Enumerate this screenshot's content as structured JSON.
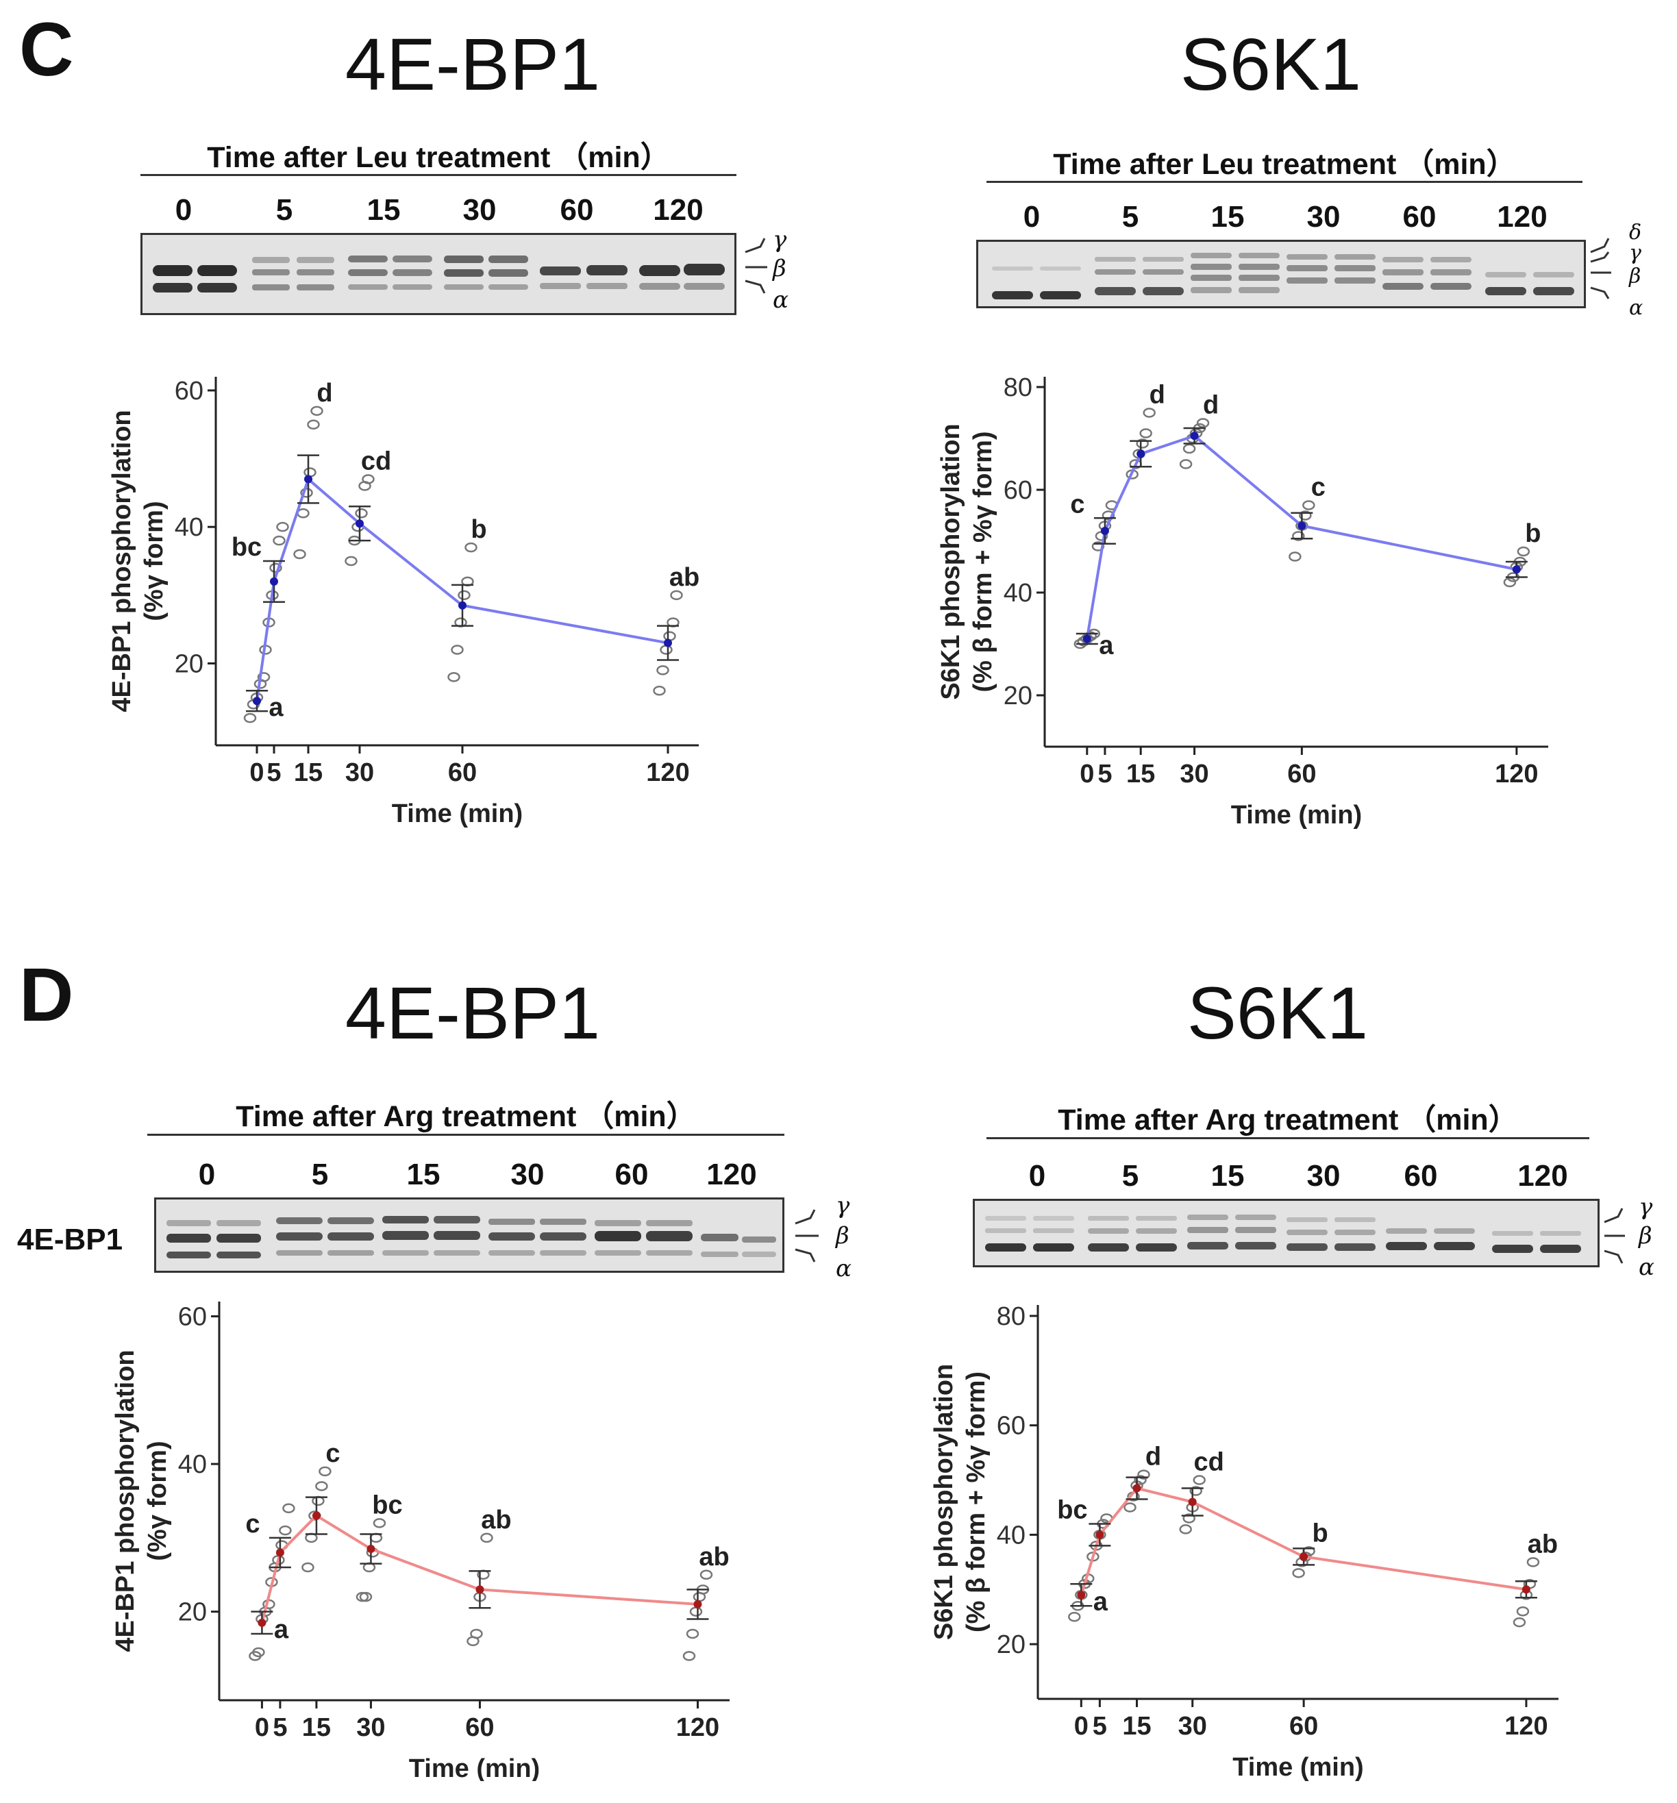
{
  "panels": [
    {
      "letter": "C",
      "blots": [
        {
          "protein": "4E-BP1",
          "time_header": "Time after Leu treatment （min）",
          "lanes": [
            "0",
            "5",
            "15",
            "30",
            "60",
            "120"
          ],
          "forms": [
            "γ",
            "β",
            "α"
          ],
          "row_label": ""
        },
        {
          "protein": "S6K1",
          "time_header": "Time after Leu treatment （min）",
          "lanes": [
            "0",
            "5",
            "15",
            "30",
            "60",
            "120"
          ],
          "forms": [
            "δ",
            "γ",
            "β",
            "α"
          ],
          "row_label": ""
        }
      ]
    },
    {
      "letter": "D",
      "blots": [
        {
          "protein": "4E-BP1",
          "time_header": "Time after Arg treatment （min）",
          "lanes": [
            "0",
            "5",
            "15",
            "30",
            "60",
            "120"
          ],
          "forms": [
            "γ",
            "β",
            "α"
          ],
          "row_label": "4E-BP1"
        },
        {
          "protein": "S6K1",
          "time_header": "Time after Arg treatment （min）",
          "lanes": [
            "0",
            "5",
            "15",
            "30",
            "60",
            "120"
          ],
          "forms": [
            "γ",
            "β",
            "α"
          ],
          "row_label": ""
        }
      ]
    }
  ],
  "chart_data": [
    {
      "id": "C-4EBP1",
      "type": "line",
      "line_color": "#7b7bf0",
      "mean_color": "#1a1aa8",
      "xlabel": "Time (min)",
      "ylabel": "4E-BP1 phosphorylation",
      "ylabel2": "(%γ form)",
      "x": [
        0,
        5,
        15,
        30,
        60,
        120
      ],
      "xticks": [
        "0",
        "5",
        "15",
        "30",
        "60",
        "120"
      ],
      "ylim": [
        8,
        62
      ],
      "yticks": [
        20,
        40,
        60
      ],
      "means": [
        14.5,
        32,
        47,
        40.5,
        28.5,
        23
      ],
      "sem": [
        1.5,
        3,
        3.5,
        2.5,
        3,
        2.5
      ],
      "letters": [
        "a",
        "bc",
        "d",
        "cd",
        "b",
        "ab"
      ],
      "points": [
        [
          12,
          14,
          15,
          17,
          18
        ],
        [
          22,
          26,
          30,
          34,
          38,
          40
        ],
        [
          36,
          42,
          45,
          48,
          55,
          57
        ],
        [
          35,
          38,
          40,
          42,
          46,
          47
        ],
        [
          18,
          22,
          26,
          30,
          32,
          37
        ],
        [
          16,
          19,
          22,
          24,
          26,
          30
        ]
      ]
    },
    {
      "id": "C-S6K1",
      "type": "line",
      "line_color": "#7b7bf0",
      "mean_color": "#1a1aa8",
      "xlabel": "Time (min)",
      "ylabel": "S6K1 phosphorylation",
      "ylabel2": "(% β form + %γ form)",
      "x": [
        0,
        5,
        15,
        30,
        60,
        120
      ],
      "xticks": [
        "0",
        "5",
        "15",
        "30",
        "60",
        "120"
      ],
      "ylim": [
        10,
        82
      ],
      "yticks": [
        20,
        40,
        60,
        80
      ],
      "means": [
        31,
        52,
        67,
        70.5,
        53,
        44.5
      ],
      "sem": [
        1,
        2.5,
        2.5,
        1.5,
        2.5,
        1.5
      ],
      "letters": [
        "a",
        "c",
        "d",
        "d",
        "c",
        "b"
      ],
      "points": [
        [
          30,
          30.5,
          31,
          31.5,
          32
        ],
        [
          49,
          51,
          53,
          55,
          57
        ],
        [
          63,
          65,
          67,
          69,
          71,
          75
        ],
        [
          65,
          68,
          70,
          71,
          72,
          73
        ],
        [
          47,
          51,
          53,
          55,
          57
        ],
        [
          42,
          43,
          45,
          46,
          48
        ]
      ]
    },
    {
      "id": "D-4EBP1",
      "type": "line",
      "line_color": "#f08a8a",
      "mean_color": "#a81a1a",
      "xlabel": "Time (min)",
      "ylabel": "4E-BP1 phosphorylation",
      "ylabel2": "(%γ form)",
      "x": [
        0,
        5,
        15,
        30,
        60,
        120
      ],
      "xticks": [
        "0",
        "5",
        "15",
        "30",
        "60",
        "120"
      ],
      "ylim": [
        8,
        62
      ],
      "yticks": [
        20,
        40,
        60
      ],
      "means": [
        18.5,
        28,
        33,
        28.5,
        23,
        21
      ],
      "sem": [
        1.5,
        2,
        2.5,
        2,
        2.5,
        2
      ],
      "letters": [
        "a",
        "c",
        "c",
        "bc",
        "ab",
        "ab"
      ],
      "points": [
        [
          14,
          14.5,
          19,
          20,
          21
        ],
        [
          24,
          26,
          27,
          29,
          31,
          34
        ],
        [
          26,
          30,
          33,
          35,
          37,
          39
        ],
        [
          22,
          22,
          26,
          28,
          30,
          32
        ],
        [
          16,
          17,
          22,
          25,
          30
        ],
        [
          14,
          17,
          20,
          22,
          23,
          25
        ]
      ]
    },
    {
      "id": "D-S6K1",
      "type": "line",
      "line_color": "#f08a8a",
      "mean_color": "#a81a1a",
      "xlabel": "Time (min)",
      "ylabel": "S6K1 phosphorylation",
      "ylabel2": "(% β form + %γ form)",
      "x": [
        0,
        5,
        15,
        30,
        60,
        120
      ],
      "xticks": [
        "0",
        "5",
        "15",
        "30",
        "60",
        "120"
      ],
      "ylim": [
        10,
        82
      ],
      "yticks": [
        20,
        40,
        60,
        80
      ],
      "means": [
        29,
        40,
        48.5,
        46,
        36,
        30
      ],
      "sem": [
        2,
        2,
        2,
        2.5,
        1.5,
        1.5
      ],
      "letters": [
        "a",
        "bc",
        "d",
        "cd",
        "b",
        "ab"
      ],
      "points": [
        [
          25,
          27,
          29,
          31,
          32
        ],
        [
          36,
          38,
          40,
          42,
          43
        ],
        [
          45,
          47,
          49,
          50,
          51
        ],
        [
          41,
          43,
          45,
          48,
          50
        ],
        [
          33,
          35,
          36,
          37
        ],
        [
          24,
          26,
          29,
          31,
          35
        ]
      ]
    }
  ]
}
